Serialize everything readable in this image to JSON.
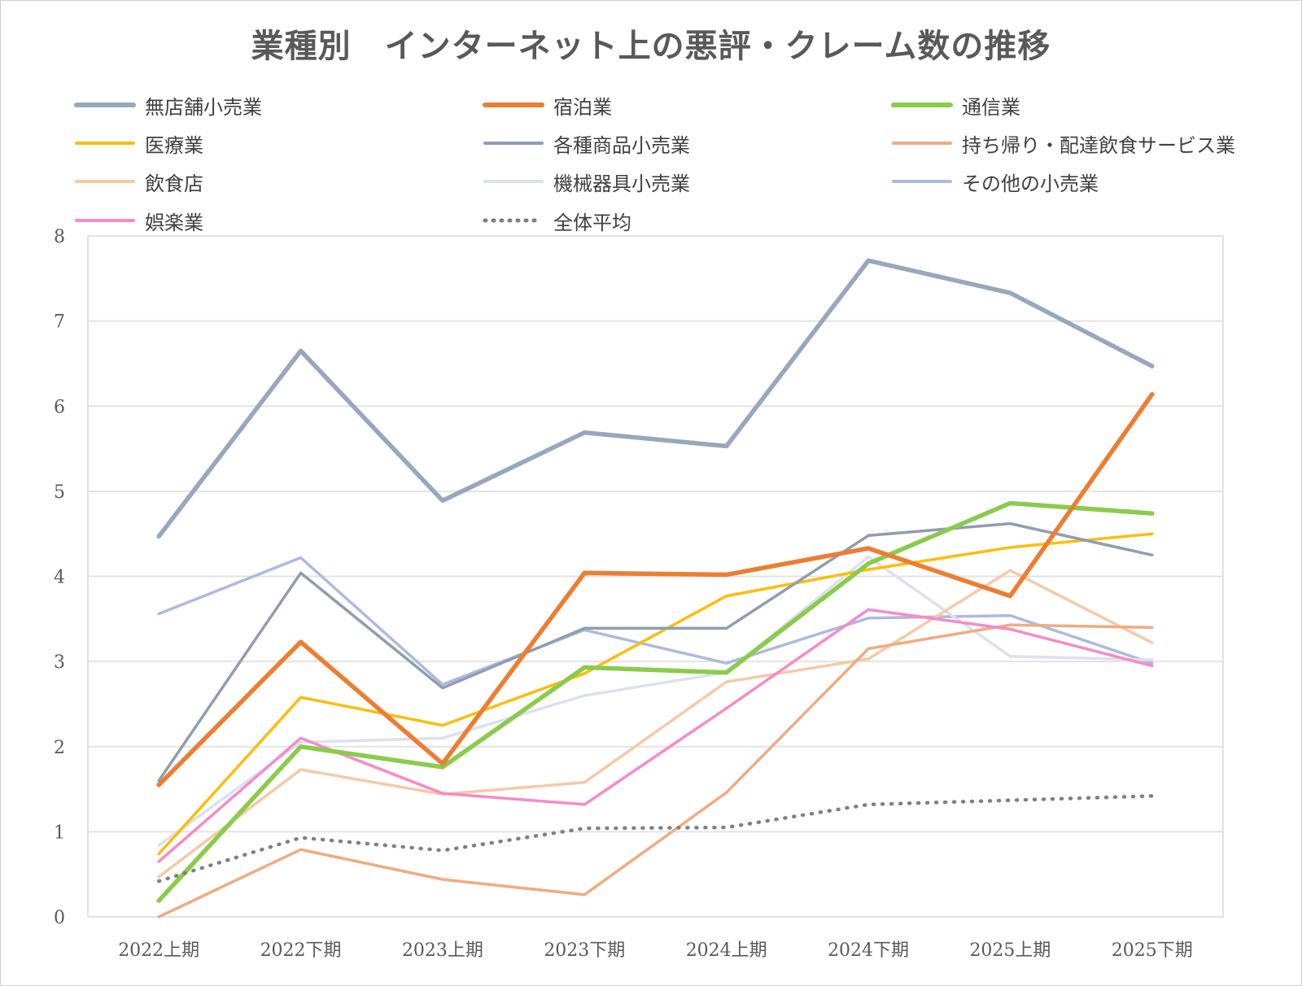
{
  "chart_data": {
    "type": "line",
    "title": "業種別　インターネット上の悪評・クレーム数の推移",
    "xlabel": "",
    "ylabel": "",
    "ylim": [
      0,
      8
    ],
    "yticks": [
      "0",
      "1",
      "2",
      "3",
      "4",
      "5",
      "6",
      "7",
      "8"
    ],
    "grid": true,
    "legend_position": "top",
    "categories": [
      "2022上期",
      "2022下期",
      "2023上期",
      "2023下期",
      "2024上期",
      "2024下期",
      "2025上期",
      "2025下期"
    ],
    "series": [
      {
        "name": "その他の小売業",
        "color": "#adbadf",
        "width": 3.5,
        "dash": "",
        "values": [
          3.56,
          4.22,
          2.73,
          3.37,
          2.98,
          3.51,
          3.54,
          2.98
        ]
      },
      {
        "name": "機械器具小売業",
        "color": "#dbe1ef",
        "width": 3.5,
        "dash": "",
        "values": [
          0.84,
          2.05,
          2.1,
          2.6,
          2.87,
          4.23,
          3.06,
          3.02
        ]
      },
      {
        "name": "飲食店",
        "color": "#f6c9a8",
        "width": 3.5,
        "dash": "",
        "values": [
          0.47,
          1.73,
          1.44,
          1.58,
          2.76,
          3.03,
          4.07,
          3.22
        ]
      },
      {
        "name": "持ち帰り・配達飲食サービス業",
        "color": "#f0ab82",
        "width": 3.5,
        "dash": "",
        "values": [
          0.0,
          0.79,
          0.44,
          0.26,
          1.46,
          3.15,
          3.43,
          3.4
        ]
      },
      {
        "name": "娯楽業",
        "color": "#f78ac8",
        "width": 3.5,
        "dash": "",
        "values": [
          0.65,
          2.1,
          1.45,
          1.32,
          2.45,
          3.61,
          3.38,
          2.95
        ]
      },
      {
        "name": "医療業",
        "color": "#fbbe0b",
        "width": 3.5,
        "dash": "",
        "values": [
          0.74,
          2.58,
          2.25,
          2.86,
          3.77,
          4.08,
          4.34,
          4.5
        ]
      },
      {
        "name": "各種商品小売業",
        "color": "#8f9db1",
        "width": 3.5,
        "dash": "",
        "values": [
          1.6,
          4.04,
          2.69,
          3.39,
          3.39,
          4.48,
          4.62,
          4.25
        ]
      },
      {
        "name": "通信業",
        "color": "#8bcb4c",
        "width": 5.5,
        "dash": "",
        "values": [
          0.19,
          2.0,
          1.76,
          2.93,
          2.87,
          4.15,
          4.86,
          4.74
        ]
      },
      {
        "name": "宿泊業",
        "color": "#ed7d31",
        "width": 5.5,
        "dash": "",
        "values": [
          1.55,
          3.23,
          1.8,
          4.04,
          4.02,
          4.33,
          3.77,
          6.14
        ]
      },
      {
        "name": "無店舗小売業",
        "color": "#97a7bd",
        "width": 5.5,
        "dash": "",
        "values": [
          4.47,
          6.65,
          4.89,
          5.69,
          5.53,
          7.71,
          7.33,
          6.47
        ]
      },
      {
        "name": "全体平均",
        "color": "#7f7f7f",
        "width": 4.5,
        "dash": "1 10",
        "values": [
          0.42,
          0.93,
          0.78,
          1.04,
          1.05,
          1.32,
          1.37,
          1.42
        ]
      }
    ],
    "legend": [
      {
        "name": "無店舗小売業",
        "color": "#97a7bd",
        "width": 6,
        "dash": ""
      },
      {
        "name": "宿泊業",
        "color": "#ed7d31",
        "width": 6,
        "dash": ""
      },
      {
        "name": "通信業",
        "color": "#8bcb4c",
        "width": 6,
        "dash": ""
      },
      {
        "name": "医療業",
        "color": "#fbbe0b",
        "width": 4,
        "dash": ""
      },
      {
        "name": "各種商品小売業",
        "color": "#8f9db1",
        "width": 4,
        "dash": ""
      },
      {
        "name": "持ち帰り・配達飲食サービス業",
        "color": "#f0ab82",
        "width": 4,
        "dash": ""
      },
      {
        "name": "飲食店",
        "color": "#f6c9a8",
        "width": 4,
        "dash": ""
      },
      {
        "name": "機械器具小売業",
        "color": "#dbe1ef",
        "width": 4,
        "dash": ""
      },
      {
        "name": "その他の小売業",
        "color": "#adbadf",
        "width": 4,
        "dash": ""
      },
      {
        "name": "娯楽業",
        "color": "#f78ac8",
        "width": 4,
        "dash": ""
      },
      {
        "name": "全体平均",
        "color": "#7f7f7f",
        "width": 5,
        "dash": "1 9"
      }
    ]
  }
}
